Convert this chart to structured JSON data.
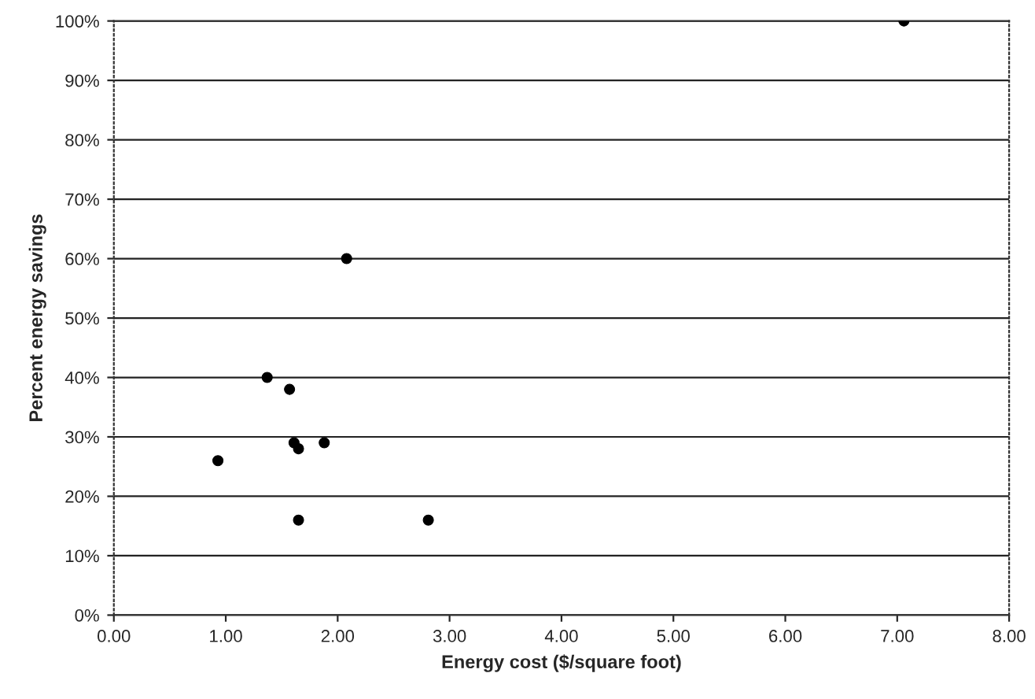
{
  "chart_data": {
    "type": "scatter",
    "xlabel": "Energy cost ($/square foot)",
    "ylabel": "Percent energy savings",
    "x": [
      0.93,
      1.37,
      1.57,
      1.61,
      1.65,
      1.65,
      1.88,
      2.08,
      2.81,
      7.06
    ],
    "values": [
      26,
      40,
      38,
      29,
      28,
      16,
      29,
      60,
      16,
      100
    ],
    "color": "#000000",
    "marker": "circle",
    "grid": "y",
    "xlim": [
      0,
      8
    ],
    "ylim": [
      0,
      100
    ],
    "xticks": [
      {
        "value": 0,
        "label": "0.00"
      },
      {
        "value": 1,
        "label": "1.00"
      },
      {
        "value": 2,
        "label": "2.00"
      },
      {
        "value": 3,
        "label": "3.00"
      },
      {
        "value": 4,
        "label": "4.00"
      },
      {
        "value": 5,
        "label": "5.00"
      },
      {
        "value": 6,
        "label": "6.00"
      },
      {
        "value": 7,
        "label": "7.00"
      },
      {
        "value": 8,
        "label": "8.00"
      }
    ],
    "yticks": [
      {
        "value": 0,
        "label": "0%"
      },
      {
        "value": 10,
        "label": "10%"
      },
      {
        "value": 20,
        "label": "20%"
      },
      {
        "value": 30,
        "label": "30%"
      },
      {
        "value": 40,
        "label": "40%"
      },
      {
        "value": 50,
        "label": "50%"
      },
      {
        "value": 60,
        "label": "60%"
      },
      {
        "value": 70,
        "label": "70%"
      },
      {
        "value": 80,
        "label": "80%"
      },
      {
        "value": 90,
        "label": "90%"
      },
      {
        "value": 100,
        "label": "100%"
      }
    ]
  }
}
